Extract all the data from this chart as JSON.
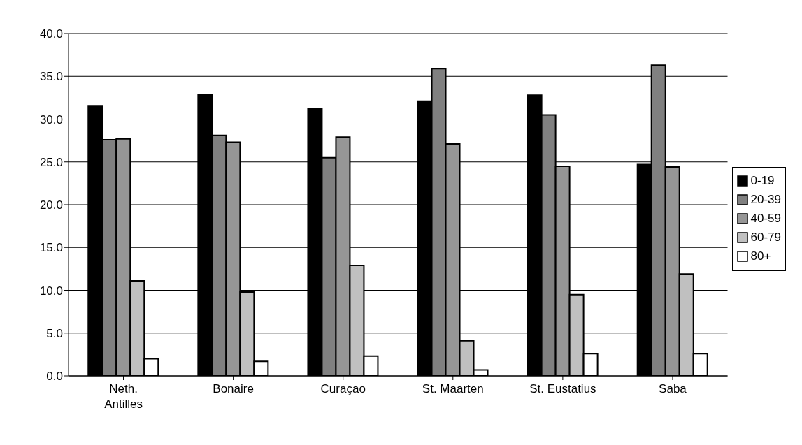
{
  "chart_data": {
    "type": "bar",
    "categories": [
      "Neth. Antilles",
      "Bonaire",
      "Curaçao",
      "St. Maarten",
      "St. Eustatius",
      "Saba"
    ],
    "series": [
      {
        "name": "0-19",
        "color": "#000000",
        "values": [
          31.5,
          32.9,
          31.2,
          32.1,
          32.8,
          24.7
        ]
      },
      {
        "name": "20-39",
        "color": "#808080",
        "values": [
          27.6,
          28.1,
          25.5,
          35.9,
          30.5,
          36.3
        ]
      },
      {
        "name": "40-59",
        "color": "#969696",
        "values": [
          27.7,
          27.3,
          27.9,
          27.1,
          24.5,
          24.4
        ]
      },
      {
        "name": "60-79",
        "color": "#c0c0c0",
        "values": [
          11.1,
          9.8,
          12.9,
          4.1,
          9.5,
          11.9
        ]
      },
      {
        "name": "80+",
        "color": "#ffffff",
        "values": [
          2.0,
          1.7,
          2.3,
          0.7,
          2.6,
          2.6
        ]
      }
    ],
    "ylim": [
      0,
      40
    ],
    "yticks": [
      {
        "value": 0,
        "label": "0.0"
      },
      {
        "value": 5,
        "label": "5.0"
      },
      {
        "value": 10,
        "label": "10.0"
      },
      {
        "value": 15,
        "label": "15.0"
      },
      {
        "value": 20,
        "label": "20.0"
      },
      {
        "value": 25,
        "label": "25.0"
      },
      {
        "value": 30,
        "label": "30.0"
      },
      {
        "value": 35,
        "label": "35.0"
      },
      {
        "value": 40,
        "label": "40.0"
      }
    ],
    "grid": "y",
    "legend": "right"
  }
}
